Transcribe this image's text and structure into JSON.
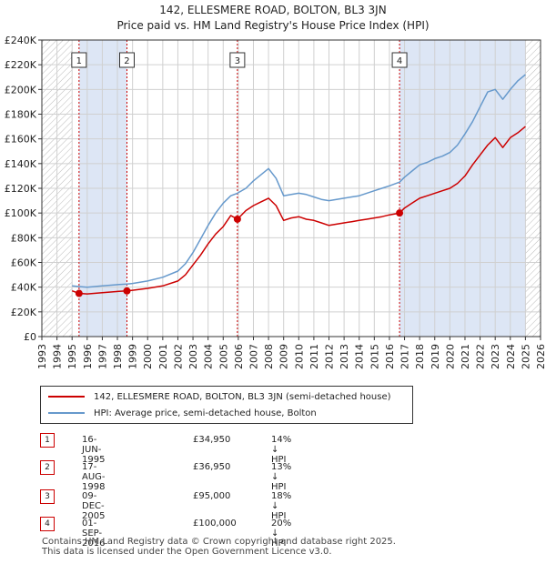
{
  "title_line1": "142, ELLESMERE ROAD, BOLTON, BL3 3JN",
  "title_line2": "Price paid vs. HM Land Registry's House Price Index (HPI)",
  "colors": {
    "price": "#cc0000",
    "hpi": "#6699cc",
    "shade": "#dde6f5",
    "grid": "#d0d0d0",
    "marker": "#cc0000"
  },
  "legend": [
    {
      "label": "142, ELLESMERE ROAD, BOLTON, BL3 3JN (semi-detached house)",
      "color": "#cc0000"
    },
    {
      "label": "HPI: Average price, semi-detached house, Bolton",
      "color": "#6699cc"
    }
  ],
  "sales": [
    {
      "num": "1",
      "date": "16-JUN-1995",
      "price": "£34,950",
      "hpi": "14% ↓ HPI"
    },
    {
      "num": "2",
      "date": "17-AUG-1998",
      "price": "£36,950",
      "hpi": "13% ↓ HPI"
    },
    {
      "num": "3",
      "date": "09-DEC-2005",
      "price": "£95,000",
      "hpi": "18% ↓ HPI"
    },
    {
      "num": "4",
      "date": "01-SEP-2016",
      "price": "£100,000",
      "hpi": "20% ↓ HPI"
    }
  ],
  "footer_line1": "Contains HM Land Registry data © Crown copyright and database right 2025.",
  "footer_line2": "This data is licensed under the Open Government Licence v3.0.",
  "chart_data": {
    "type": "line",
    "xlim": [
      1993,
      2026
    ],
    "ylim": [
      0,
      240000
    ],
    "x_ticks": [
      1993,
      1994,
      1995,
      1996,
      1997,
      1998,
      1999,
      2000,
      2001,
      2002,
      2003,
      2004,
      2005,
      2006,
      2007,
      2008,
      2009,
      2010,
      2011,
      2012,
      2013,
      2014,
      2015,
      2016,
      2017,
      2018,
      2019,
      2020,
      2021,
      2022,
      2023,
      2024,
      2025,
      2026
    ],
    "y_ticks": [
      0,
      20000,
      40000,
      60000,
      80000,
      100000,
      120000,
      140000,
      160000,
      180000,
      200000,
      220000,
      240000
    ],
    "y_tick_labels": [
      "£0",
      "£20K",
      "£40K",
      "£60K",
      "£80K",
      "£100K",
      "£120K",
      "£140K",
      "£160K",
      "£180K",
      "£200K",
      "£220K",
      "£240K"
    ],
    "hatched_before": 1995.0,
    "hatched_after": 2025.0,
    "shaded_ranges": [
      [
        1995.46,
        1998.63
      ],
      [
        2016.67,
        2025.0
      ]
    ],
    "sale_markers": [
      {
        "label": "1",
        "x": 1995.46,
        "y": 34950
      },
      {
        "label": "2",
        "x": 1998.63,
        "y": 36950
      },
      {
        "label": "3",
        "x": 2005.94,
        "y": 95000
      },
      {
        "label": "4",
        "x": 2016.67,
        "y": 100000
      }
    ],
    "series": [
      {
        "name": "142, ELLESMERE ROAD, BOLTON, BL3 3JN (semi-detached house)",
        "x": [
          1995.0,
          1995.46,
          1996.0,
          1997.0,
          1998.0,
          1998.63,
          1999.0,
          2000.0,
          2001.0,
          2002.0,
          2002.5,
          2003.0,
          2003.5,
          2004.0,
          2004.5,
          2005.0,
          2005.5,
          2005.94,
          2006.5,
          2007.0,
          2007.5,
          2008.0,
          2008.5,
          2009.0,
          2009.5,
          2010.0,
          2010.5,
          2011.0,
          2011.5,
          2012.0,
          2012.5,
          2013.0,
          2013.5,
          2014.0,
          2014.5,
          2015.0,
          2015.5,
          2016.0,
          2016.67,
          2017.0,
          2017.5,
          2018.0,
          2018.5,
          2019.0,
          2019.5,
          2020.0,
          2020.5,
          2021.0,
          2021.5,
          2022.0,
          2022.5,
          2023.0,
          2023.5,
          2024.0,
          2024.5,
          2025.0
        ],
        "values": [
          37000,
          34950,
          34500,
          35500,
          36500,
          36950,
          37500,
          39000,
          41000,
          45000,
          50000,
          58000,
          66000,
          75000,
          83000,
          89000,
          98000,
          95000,
          102000,
          106000,
          109000,
          112000,
          106000,
          94000,
          96000,
          97000,
          95000,
          94000,
          92000,
          90000,
          91000,
          92000,
          93000,
          94000,
          95000,
          96000,
          97000,
          98500,
          100000,
          104000,
          108000,
          112000,
          114000,
          116000,
          118000,
          120000,
          124000,
          130000,
          139000,
          147000,
          155000,
          161000,
          153000,
          161000,
          165000,
          170000
        ]
      },
      {
        "name": "HPI: Average price, semi-detached house, Bolton",
        "x": [
          1995.0,
          1995.46,
          1996.0,
          1997.0,
          1998.0,
          1998.63,
          1999.0,
          2000.0,
          2001.0,
          2002.0,
          2002.5,
          2003.0,
          2003.5,
          2004.0,
          2004.5,
          2005.0,
          2005.5,
          2005.94,
          2006.5,
          2007.0,
          2007.5,
          2008.0,
          2008.5,
          2009.0,
          2009.5,
          2010.0,
          2010.5,
          2011.0,
          2011.5,
          2012.0,
          2012.5,
          2013.0,
          2013.5,
          2014.0,
          2014.5,
          2015.0,
          2015.5,
          2016.0,
          2016.67,
          2017.0,
          2017.5,
          2018.0,
          2018.5,
          2019.0,
          2019.5,
          2020.0,
          2020.5,
          2021.0,
          2021.5,
          2022.0,
          2022.5,
          2023.0,
          2023.5,
          2024.0,
          2024.5,
          2025.0
        ],
        "values": [
          41000,
          40500,
          40000,
          41000,
          42000,
          42500,
          43000,
          45000,
          48000,
          53000,
          59000,
          68000,
          79000,
          90000,
          100000,
          108000,
          114000,
          116000,
          120000,
          126000,
          131000,
          136000,
          128000,
          114000,
          115000,
          116000,
          115000,
          113000,
          111000,
          110000,
          111000,
          112000,
          113000,
          114000,
          116000,
          118000,
          120000,
          122000,
          125000,
          129000,
          134000,
          139000,
          141000,
          144000,
          146000,
          149000,
          155000,
          164000,
          174000,
          186000,
          198000,
          200000,
          192000,
          200000,
          207000,
          212000
        ]
      }
    ]
  }
}
